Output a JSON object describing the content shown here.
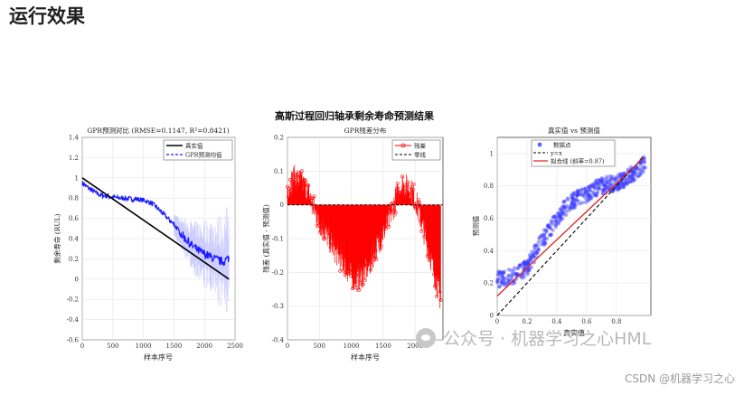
{
  "heading": "运行效果",
  "figure": {
    "suptitle": "高斯过程回归轴承剩余寿命预测结果",
    "panel1": {
      "title": "GPR预测对比 (RMSE=0.1147, R²=0.8421)",
      "ylabel": "剩余寿命 (RUL)",
      "xlabel": "样本序号",
      "legend": [
        "真实值",
        "GPR预测均值"
      ],
      "yticks": [
        "1.4",
        "1.2",
        "1",
        "0.8",
        "0.6",
        "0.4",
        "0.2",
        "0",
        "-0.2",
        "-0.4",
        "-0.6"
      ],
      "xticks": [
        "0",
        "500",
        "1000",
        "1500",
        "2000",
        "2500"
      ]
    },
    "panel2": {
      "title": "GPR残差分布",
      "ylabel": "残差 (真实值 - 预测值)",
      "xlabel": "样本序号",
      "legend": [
        "残差",
        "零线"
      ],
      "yticks": [
        "0.2",
        "0.1",
        "0",
        "-0.1",
        "-0.2",
        "-0.3",
        "-0.4"
      ],
      "xticks": [
        "0",
        "500",
        "1000",
        "1500",
        "2000"
      ]
    },
    "panel3": {
      "title": "真实值 vs 预测值",
      "ylabel": "预测值",
      "xlabel": "真实值",
      "legend": [
        "数据点",
        "y=x",
        "拟合线 (斜率=0.87)"
      ],
      "yticks": [
        "1",
        "0.8",
        "0.6",
        "0.4",
        "0.2",
        "0"
      ],
      "xticks": [
        "0",
        "0.2",
        "0.4",
        "0.6",
        "0.8"
      ]
    }
  },
  "watermark": "公众号 · 机器学习之心HML",
  "footer": "CSDN @机器学习之心",
  "colors": {
    "prediction": "#1a1aff",
    "truth": "#000000",
    "residual": "#ff0000",
    "fit": "#dd2222",
    "scatter": "#3a3aff"
  },
  "chart_data": [
    {
      "type": "line",
      "title": "GPR预测对比 (RMSE=0.1147, R²=0.8421)",
      "xlabel": "样本序号",
      "ylabel": "剩余寿命 (RUL)",
      "xlim": [
        0,
        2500
      ],
      "ylim": [
        -0.6,
        1.4
      ],
      "series": [
        {
          "name": "真实值",
          "x": [
            0,
            2400
          ],
          "values": [
            1.0,
            0.0
          ]
        },
        {
          "name": "GPR预测均值",
          "x": [
            0,
            100,
            200,
            300,
            400,
            500,
            600,
            700,
            800,
            900,
            1000,
            1100,
            1200,
            1300,
            1400,
            1500,
            1600,
            1700,
            1800,
            1900,
            2000,
            2100,
            2200,
            2300,
            2400
          ],
          "values": [
            0.95,
            0.9,
            0.86,
            0.83,
            0.82,
            0.81,
            0.8,
            0.8,
            0.79,
            0.79,
            0.78,
            0.76,
            0.72,
            0.66,
            0.6,
            0.54,
            0.46,
            0.39,
            0.33,
            0.28,
            0.25,
            0.22,
            0.19,
            0.17,
            0.21
          ]
        }
      ],
      "grid": true,
      "legend": "top-right"
    },
    {
      "type": "line",
      "title": "GPR残差分布",
      "xlabel": "样本序号",
      "ylabel": "残差 (真实值 - 预测值)",
      "xlim": [
        0,
        2400
      ],
      "ylim": [
        -0.4,
        0.2
      ],
      "series": [
        {
          "name": "残差",
          "x": [
            0,
            100,
            200,
            300,
            400,
            500,
            600,
            700,
            800,
            900,
            1000,
            1100,
            1200,
            1300,
            1400,
            1500,
            1600,
            1700,
            1800,
            1900,
            2000,
            2100,
            2200,
            2300,
            2400
          ],
          "values": [
            0.05,
            0.08,
            0.07,
            0.04,
            0.0,
            -0.05,
            -0.08,
            -0.12,
            -0.15,
            -0.18,
            -0.21,
            -0.22,
            -0.2,
            -0.17,
            -0.12,
            -0.08,
            -0.04,
            0.02,
            0.06,
            0.05,
            0.02,
            -0.05,
            -0.12,
            -0.2,
            -0.28
          ]
        },
        {
          "name": "零线",
          "x": [
            0,
            2400
          ],
          "values": [
            0,
            0
          ]
        }
      ],
      "grid": true,
      "legend": "top-right"
    },
    {
      "type": "scatter",
      "title": "真实值 vs 预测值",
      "xlabel": "真实值",
      "ylabel": "预测值",
      "xlim": [
        0,
        1
      ],
      "ylim": [
        0,
        1.1
      ],
      "series": [
        {
          "name": "数据点",
          "x": [
            0.0,
            0.05,
            0.1,
            0.15,
            0.2,
            0.25,
            0.3,
            0.35,
            0.4,
            0.45,
            0.5,
            0.55,
            0.6,
            0.65,
            0.7,
            0.75,
            0.8,
            0.85,
            0.9,
            0.95,
            1.0
          ],
          "values": [
            0.22,
            0.23,
            0.24,
            0.26,
            0.3,
            0.38,
            0.46,
            0.53,
            0.6,
            0.66,
            0.7,
            0.73,
            0.75,
            0.78,
            0.8,
            0.81,
            0.82,
            0.84,
            0.87,
            0.9,
            0.95
          ]
        },
        {
          "name": "y=x",
          "x": [
            0,
            1
          ],
          "values": [
            0,
            1
          ]
        },
        {
          "name": "拟合线 (斜率=0.87)",
          "x": [
            0,
            1
          ],
          "values": [
            0.12,
            0.99
          ]
        }
      ],
      "grid": true,
      "legend": "top-left"
    }
  ]
}
